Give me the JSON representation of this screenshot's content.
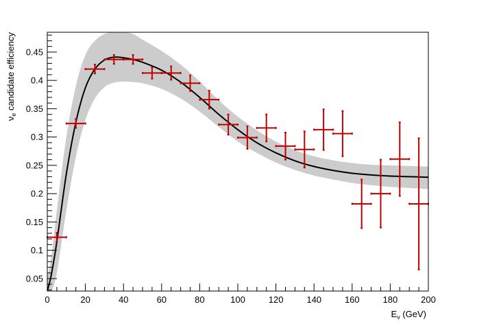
{
  "chart_data": {
    "type": "scatter",
    "title": "",
    "xlabel": "Eν (GeV)",
    "xlabel_main": "E",
    "xlabel_sub": "ν",
    "xlabel_unit": " (GeV)",
    "ylabel": "νe candidate efficiency",
    "ylabel_main": "ν",
    "ylabel_sub": "e",
    "ylabel_rest": " candidate efficiency",
    "xlim": [
      0,
      200
    ],
    "ylim": [
      0.028,
      0.485
    ],
    "x_ticks": [
      "0",
      "20",
      "40",
      "60",
      "80",
      "100",
      "120",
      "140",
      "160",
      "180",
      "200"
    ],
    "y_ticks": [
      "0.05",
      "0.1",
      "0.15",
      "0.2",
      "0.25",
      "0.3",
      "0.35",
      "0.4",
      "0.45"
    ],
    "grid": false,
    "colors": {
      "data": "#c00000",
      "band": "#cccccc",
      "curve": "#000000"
    },
    "series": [
      {
        "name": "data",
        "kind": "points_with_errors",
        "points": [
          {
            "x": 5,
            "xerr": 5,
            "y": 0.123,
            "yerr": 0.008
          },
          {
            "x": 15,
            "xerr": 5,
            "y": 0.324,
            "yerr": 0.008
          },
          {
            "x": 25,
            "xerr": 5,
            "y": 0.42,
            "yerr": 0.008
          },
          {
            "x": 35,
            "xerr": 5,
            "y": 0.437,
            "yerr": 0.008
          },
          {
            "x": 45,
            "xerr": 5,
            "y": 0.437,
            "yerr": 0.008
          },
          {
            "x": 55,
            "xerr": 5,
            "y": 0.413,
            "yerr": 0.01
          },
          {
            "x": 65,
            "xerr": 5,
            "y": 0.413,
            "yerr": 0.012
          },
          {
            "x": 75,
            "xerr": 5,
            "y": 0.395,
            "yerr": 0.014
          },
          {
            "x": 85,
            "xerr": 5,
            "y": 0.366,
            "yerr": 0.016
          },
          {
            "x": 95,
            "xerr": 5,
            "y": 0.322,
            "yerr": 0.018
          },
          {
            "x": 105,
            "xerr": 5,
            "y": 0.299,
            "yerr": 0.02
          },
          {
            "x": 115,
            "xerr": 5,
            "y": 0.316,
            "yerr": 0.024
          },
          {
            "x": 125,
            "xerr": 5,
            "y": 0.284,
            "yerr": 0.024
          },
          {
            "x": 135,
            "xerr": 5,
            "y": 0.278,
            "yerr": 0.032
          },
          {
            "x": 145,
            "xerr": 5,
            "y": 0.313,
            "yerr": 0.036
          },
          {
            "x": 155,
            "xerr": 5,
            "y": 0.306,
            "yerr": 0.04
          },
          {
            "x": 165,
            "xerr": 5,
            "y": 0.182,
            "yerr": 0.043
          },
          {
            "x": 175,
            "xerr": 5,
            "y": 0.2,
            "yerr": 0.06
          },
          {
            "x": 185,
            "xerr": 5,
            "y": 0.261,
            "yerr": 0.065
          },
          {
            "x": 195,
            "xerr": 5,
            "y": 0.182,
            "yerr": 0.116
          }
        ]
      },
      {
        "name": "fit",
        "kind": "line",
        "x": [
          0,
          2,
          5,
          10,
          15,
          20,
          25,
          30,
          35,
          40,
          45,
          50,
          60,
          70,
          80,
          90,
          100,
          110,
          120,
          130,
          140,
          150,
          160,
          170,
          180,
          190,
          200
        ],
        "y": [
          0.028,
          0.055,
          0.115,
          0.235,
          0.326,
          0.387,
          0.42,
          0.436,
          0.441,
          0.44,
          0.437,
          0.432,
          0.418,
          0.397,
          0.37,
          0.34,
          0.313,
          0.29,
          0.272,
          0.258,
          0.248,
          0.241,
          0.236,
          0.233,
          0.231,
          0.23,
          0.229
        ]
      },
      {
        "name": "uncertainty band",
        "kind": "band",
        "x": [
          0,
          2,
          5,
          10,
          15,
          20,
          25,
          30,
          35,
          40,
          45,
          50,
          60,
          70,
          80,
          90,
          100,
          110,
          120,
          130,
          140,
          150,
          160,
          170,
          180,
          190,
          200
        ],
        "lower": [
          0.028,
          0.028,
          0.06,
          0.17,
          0.265,
          0.33,
          0.368,
          0.388,
          0.396,
          0.398,
          0.397,
          0.395,
          0.385,
          0.368,
          0.345,
          0.318,
          0.292,
          0.272,
          0.255,
          0.242,
          0.232,
          0.225,
          0.219,
          0.215,
          0.212,
          0.21,
          0.208
        ],
        "upper": [
          0.055,
          0.085,
          0.17,
          0.3,
          0.39,
          0.445,
          0.47,
          0.482,
          0.485,
          0.485,
          0.482,
          0.472,
          0.452,
          0.428,
          0.398,
          0.365,
          0.336,
          0.312,
          0.292,
          0.277,
          0.266,
          0.259,
          0.254,
          0.251,
          0.25,
          0.249,
          0.248
        ]
      }
    ]
  }
}
